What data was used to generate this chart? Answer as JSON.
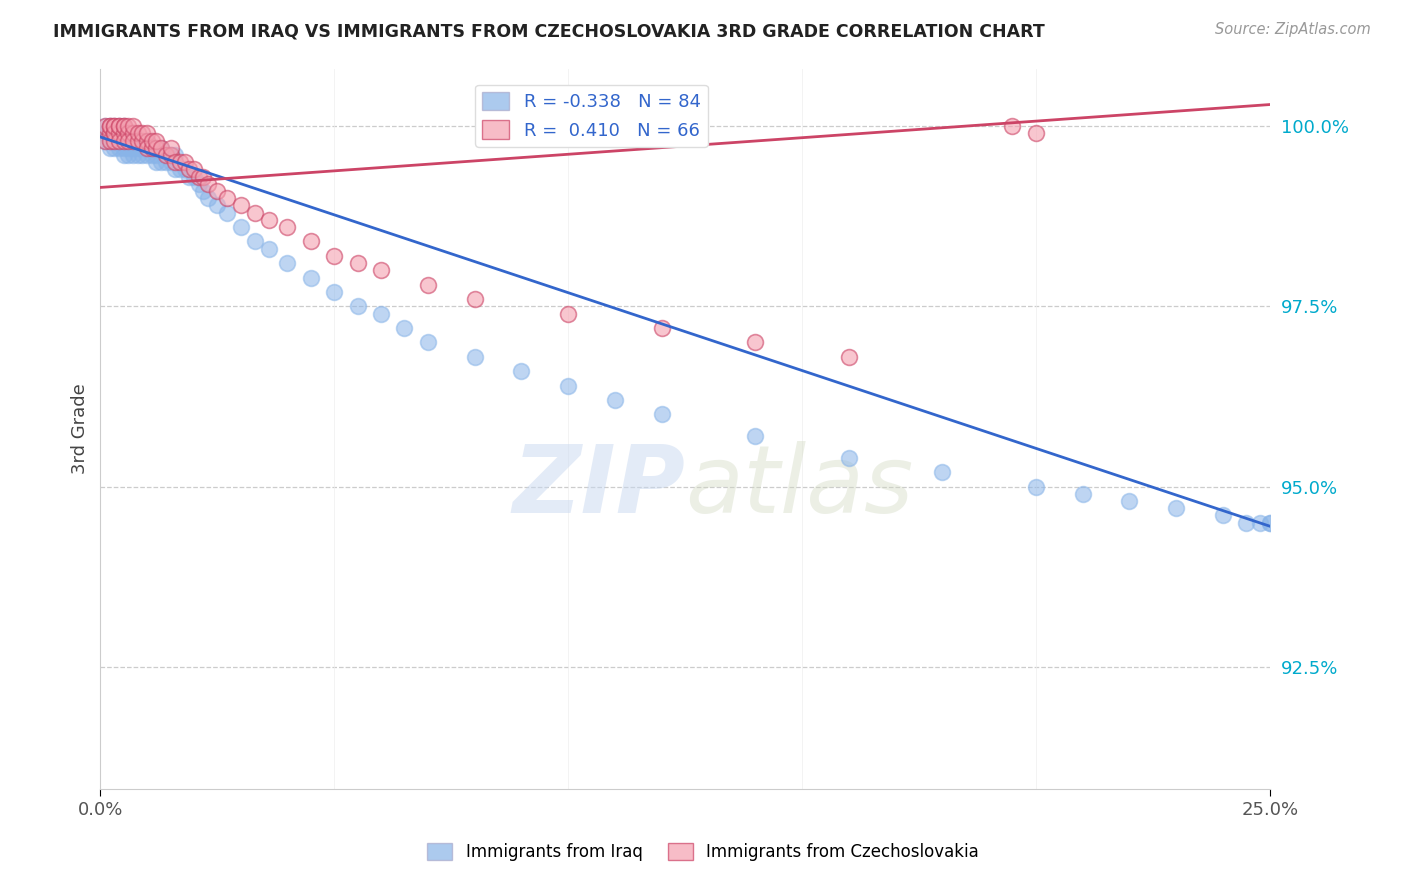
{
  "title": "IMMIGRANTS FROM IRAQ VS IMMIGRANTS FROM CZECHOSLOVAKIA 3RD GRADE CORRELATION CHART",
  "source": "Source: ZipAtlas.com",
  "ylabel_label": "3rd Grade",
  "ylabel_ticks": [
    "92.5%",
    "95.0%",
    "97.5%",
    "100.0%"
  ],
  "ytick_vals": [
    0.925,
    0.95,
    0.975,
    1.0
  ],
  "xtick_vals": [
    0.0,
    0.25
  ],
  "xlabel_ticks": [
    "0.0%",
    "25.0%"
  ],
  "xlim": [
    0.0,
    0.25
  ],
  "ylim": [
    0.908,
    1.008
  ],
  "legend_blue_r": "-0.338",
  "legend_blue_n": "84",
  "legend_pink_r": "0.410",
  "legend_pink_n": "66",
  "blue_color": "#89B4E8",
  "pink_color": "#F4A0B0",
  "blue_line_color": "#3366CC",
  "pink_line_color": "#CC4466",
  "background_color": "#FFFFFF",
  "watermark_zip": "ZIP",
  "watermark_atlas": "atlas",
  "iraq_x": [
    0.001,
    0.001,
    0.001,
    0.002,
    0.002,
    0.002,
    0.002,
    0.003,
    0.003,
    0.003,
    0.003,
    0.003,
    0.004,
    0.004,
    0.004,
    0.004,
    0.005,
    0.005,
    0.005,
    0.005,
    0.005,
    0.006,
    0.006,
    0.006,
    0.006,
    0.007,
    0.007,
    0.007,
    0.007,
    0.008,
    0.008,
    0.008,
    0.009,
    0.009,
    0.01,
    0.01,
    0.01,
    0.011,
    0.011,
    0.012,
    0.012,
    0.013,
    0.013,
    0.014,
    0.015,
    0.015,
    0.016,
    0.016,
    0.017,
    0.018,
    0.019,
    0.02,
    0.021,
    0.022,
    0.023,
    0.025,
    0.027,
    0.03,
    0.033,
    0.036,
    0.04,
    0.045,
    0.05,
    0.055,
    0.06,
    0.065,
    0.07,
    0.08,
    0.09,
    0.1,
    0.11,
    0.12,
    0.14,
    0.16,
    0.18,
    0.2,
    0.21,
    0.22,
    0.23,
    0.24,
    0.245,
    0.248,
    0.25,
    0.25
  ],
  "iraq_y": [
    0.999,
    0.998,
    1.0,
    0.999,
    0.998,
    0.997,
    1.0,
    0.999,
    0.998,
    0.997,
    0.999,
    1.0,
    0.998,
    0.997,
    0.999,
    1.0,
    0.998,
    0.997,
    0.996,
    0.999,
    1.0,
    0.997,
    0.998,
    0.996,
    0.999,
    0.997,
    0.996,
    0.998,
    0.999,
    0.997,
    0.996,
    0.998,
    0.996,
    0.997,
    0.996,
    0.997,
    0.998,
    0.996,
    0.997,
    0.995,
    0.996,
    0.995,
    0.997,
    0.995,
    0.995,
    0.996,
    0.994,
    0.996,
    0.994,
    0.994,
    0.993,
    0.993,
    0.992,
    0.991,
    0.99,
    0.989,
    0.988,
    0.986,
    0.984,
    0.983,
    0.981,
    0.979,
    0.977,
    0.975,
    0.974,
    0.972,
    0.97,
    0.968,
    0.966,
    0.964,
    0.962,
    0.96,
    0.957,
    0.954,
    0.952,
    0.95,
    0.949,
    0.948,
    0.947,
    0.946,
    0.945,
    0.945,
    0.945,
    0.945
  ],
  "czech_x": [
    0.001,
    0.001,
    0.002,
    0.002,
    0.002,
    0.002,
    0.003,
    0.003,
    0.003,
    0.003,
    0.003,
    0.004,
    0.004,
    0.004,
    0.004,
    0.005,
    0.005,
    0.005,
    0.005,
    0.006,
    0.006,
    0.006,
    0.007,
    0.007,
    0.007,
    0.008,
    0.008,
    0.009,
    0.009,
    0.01,
    0.01,
    0.01,
    0.011,
    0.011,
    0.012,
    0.012,
    0.013,
    0.014,
    0.015,
    0.015,
    0.016,
    0.017,
    0.018,
    0.019,
    0.02,
    0.021,
    0.022,
    0.023,
    0.025,
    0.027,
    0.03,
    0.033,
    0.036,
    0.04,
    0.045,
    0.05,
    0.055,
    0.06,
    0.07,
    0.08,
    0.1,
    0.12,
    0.14,
    0.16,
    0.195,
    0.2
  ],
  "czech_y": [
    0.998,
    1.0,
    0.999,
    0.998,
    1.0,
    1.0,
    0.999,
    0.998,
    1.0,
    0.999,
    1.0,
    0.999,
    0.998,
    1.0,
    1.0,
    0.999,
    0.998,
    1.0,
    1.0,
    0.999,
    0.998,
    1.0,
    0.999,
    0.998,
    1.0,
    0.998,
    0.999,
    0.998,
    0.999,
    0.998,
    0.997,
    0.999,
    0.997,
    0.998,
    0.997,
    0.998,
    0.997,
    0.996,
    0.996,
    0.997,
    0.995,
    0.995,
    0.995,
    0.994,
    0.994,
    0.993,
    0.993,
    0.992,
    0.991,
    0.99,
    0.989,
    0.988,
    0.987,
    0.986,
    0.984,
    0.982,
    0.981,
    0.98,
    0.978,
    0.976,
    0.974,
    0.972,
    0.97,
    0.968,
    1.0,
    0.999
  ],
  "iraq_line_x": [
    0.0,
    0.25
  ],
  "iraq_line_y": [
    0.9985,
    0.9445
  ],
  "czech_line_x": [
    0.0,
    0.25
  ],
  "czech_line_y": [
    0.9915,
    1.003
  ]
}
